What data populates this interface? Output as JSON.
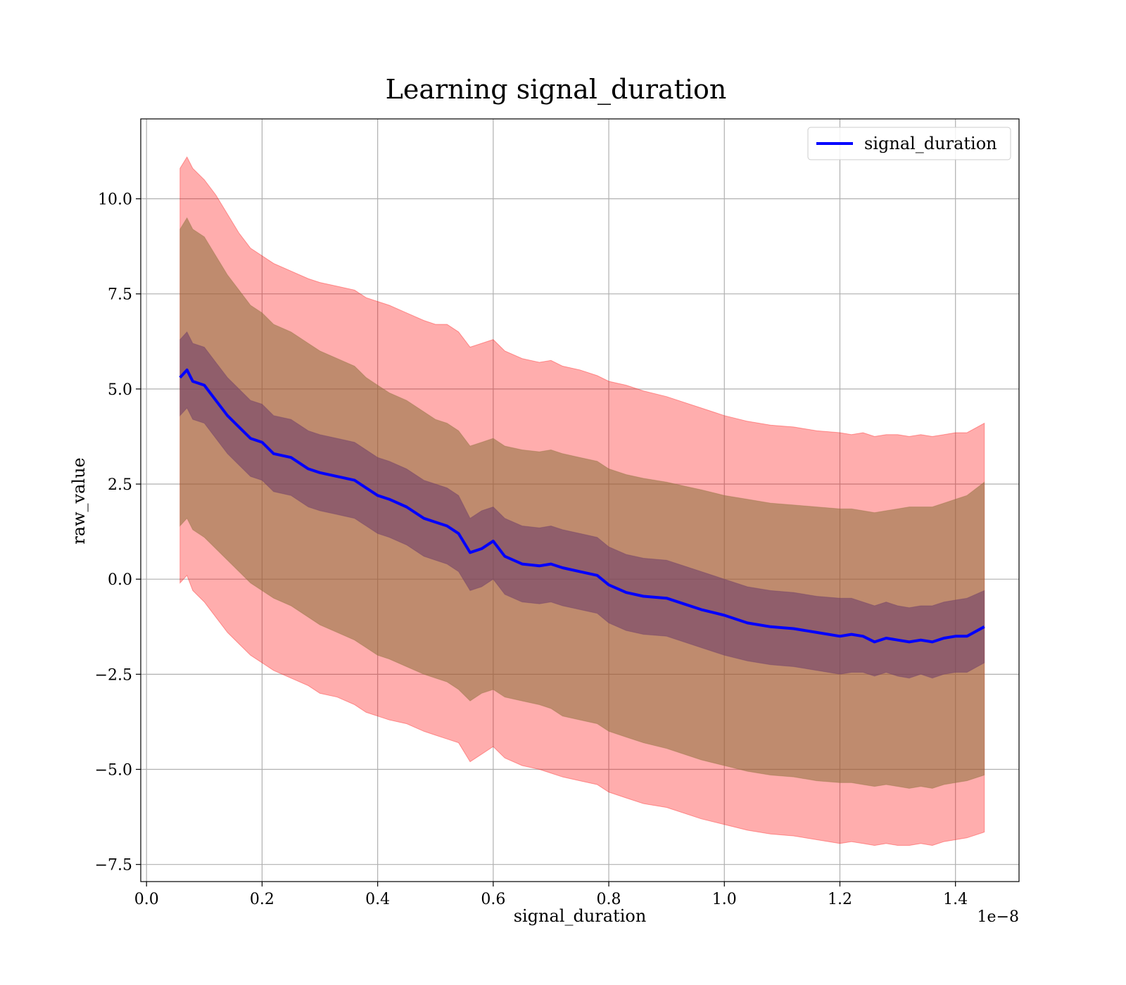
{
  "chart_data": {
    "type": "area",
    "title": "Learning signal_duration",
    "xlabel": "signal_duration",
    "ylabel": "raw_value",
    "x_offset_label": "1e−8",
    "xlim": [
      -0.01,
      1.51
    ],
    "ylim": [
      -7.95,
      12.1
    ],
    "x_ticks": [
      0.0,
      0.2,
      0.4,
      0.6,
      0.8,
      1.0,
      1.2,
      1.4
    ],
    "x_tick_labels": [
      "0.0",
      "0.2",
      "0.4",
      "0.6",
      "0.8",
      "1.0",
      "1.2",
      "1.4"
    ],
    "y_ticks": [
      -7.5,
      -5.0,
      -2.5,
      0.0,
      2.5,
      5.0,
      7.5,
      10.0
    ],
    "y_tick_labels": [
      "−7.5",
      "−5.0",
      "−2.5",
      "0.0",
      "2.5",
      "5.0",
      "7.5",
      "10.0"
    ],
    "grid": true,
    "legend_position": "top-right",
    "colors": {
      "line": "#0000ff",
      "band_outer": "#ff0000",
      "band_middle": "#8b6f3a",
      "band_inner": "#6a3a6a",
      "grid": "#b0b0b0"
    },
    "series": [
      {
        "name": "signal_duration",
        "x": [
          0.058,
          0.07,
          0.08,
          0.1,
          0.12,
          0.14,
          0.16,
          0.18,
          0.2,
          0.22,
          0.25,
          0.28,
          0.3,
          0.33,
          0.36,
          0.38,
          0.4,
          0.42,
          0.45,
          0.48,
          0.5,
          0.52,
          0.54,
          0.56,
          0.58,
          0.6,
          0.62,
          0.65,
          0.68,
          0.7,
          0.72,
          0.75,
          0.78,
          0.8,
          0.83,
          0.86,
          0.9,
          0.93,
          0.96,
          1.0,
          1.04,
          1.08,
          1.12,
          1.16,
          1.2,
          1.22,
          1.24,
          1.26,
          1.28,
          1.3,
          1.32,
          1.34,
          1.36,
          1.38,
          1.4,
          1.42,
          1.45
        ],
        "y": [
          5.3,
          5.5,
          5.2,
          5.1,
          4.7,
          4.3,
          4.0,
          3.7,
          3.6,
          3.3,
          3.2,
          2.9,
          2.8,
          2.7,
          2.6,
          2.4,
          2.2,
          2.1,
          1.9,
          1.6,
          1.5,
          1.4,
          1.2,
          0.7,
          0.8,
          1.0,
          0.6,
          0.4,
          0.35,
          0.4,
          0.3,
          0.2,
          0.1,
          -0.15,
          -0.35,
          -0.45,
          -0.5,
          -0.65,
          -0.8,
          -0.95,
          -1.15,
          -1.25,
          -1.3,
          -1.4,
          -1.5,
          -1.45,
          -1.5,
          -1.65,
          -1.55,
          -1.6,
          -1.65,
          -1.6,
          -1.65,
          -1.55,
          -1.5,
          -1.5,
          -1.25
        ],
        "upper_1": [
          6.3,
          6.5,
          6.2,
          6.1,
          5.7,
          5.3,
          5.0,
          4.7,
          4.6,
          4.3,
          4.2,
          3.9,
          3.8,
          3.7,
          3.6,
          3.4,
          3.2,
          3.1,
          2.9,
          2.6,
          2.5,
          2.4,
          2.2,
          1.6,
          1.8,
          1.9,
          1.6,
          1.4,
          1.35,
          1.4,
          1.3,
          1.2,
          1.1,
          0.85,
          0.65,
          0.55,
          0.5,
          0.35,
          0.2,
          0.0,
          -0.2,
          -0.3,
          -0.35,
          -0.45,
          -0.5,
          -0.5,
          -0.6,
          -0.7,
          -0.6,
          -0.7,
          -0.75,
          -0.7,
          -0.7,
          -0.6,
          -0.55,
          -0.5,
          -0.3
        ],
        "lower_1": [
          4.3,
          4.5,
          4.2,
          4.1,
          3.7,
          3.3,
          3.0,
          2.7,
          2.6,
          2.3,
          2.2,
          1.9,
          1.8,
          1.7,
          1.6,
          1.4,
          1.2,
          1.1,
          0.9,
          0.6,
          0.5,
          0.4,
          0.2,
          -0.3,
          -0.2,
          0.0,
          -0.4,
          -0.6,
          -0.65,
          -0.6,
          -0.7,
          -0.8,
          -0.9,
          -1.15,
          -1.35,
          -1.45,
          -1.5,
          -1.65,
          -1.8,
          -2.0,
          -2.15,
          -2.25,
          -2.3,
          -2.4,
          -2.5,
          -2.45,
          -2.45,
          -2.55,
          -2.45,
          -2.55,
          -2.6,
          -2.5,
          -2.6,
          -2.5,
          -2.45,
          -2.45,
          -2.2
        ],
        "upper_2": [
          9.2,
          9.5,
          9.2,
          9.0,
          8.5,
          8.0,
          7.6,
          7.2,
          7.0,
          6.7,
          6.5,
          6.2,
          6.0,
          5.8,
          5.6,
          5.3,
          5.1,
          4.9,
          4.7,
          4.4,
          4.2,
          4.1,
          3.9,
          3.5,
          3.6,
          3.7,
          3.5,
          3.4,
          3.35,
          3.4,
          3.3,
          3.2,
          3.1,
          2.9,
          2.75,
          2.65,
          2.55,
          2.45,
          2.35,
          2.2,
          2.1,
          2.0,
          1.95,
          1.9,
          1.85,
          1.85,
          1.8,
          1.75,
          1.8,
          1.85,
          1.9,
          1.9,
          1.9,
          2.0,
          2.1,
          2.2,
          2.55
        ],
        "lower_2": [
          1.4,
          1.6,
          1.3,
          1.1,
          0.8,
          0.5,
          0.2,
          -0.1,
          -0.3,
          -0.5,
          -0.7,
          -1.0,
          -1.2,
          -1.4,
          -1.6,
          -1.8,
          -2.0,
          -2.1,
          -2.3,
          -2.5,
          -2.6,
          -2.7,
          -2.9,
          -3.2,
          -3.0,
          -2.9,
          -3.1,
          -3.2,
          -3.3,
          -3.4,
          -3.6,
          -3.7,
          -3.8,
          -4.0,
          -4.15,
          -4.3,
          -4.45,
          -4.6,
          -4.75,
          -4.9,
          -5.05,
          -5.15,
          -5.2,
          -5.3,
          -5.35,
          -5.35,
          -5.4,
          -5.45,
          -5.4,
          -5.45,
          -5.5,
          -5.45,
          -5.5,
          -5.4,
          -5.35,
          -5.3,
          -5.15
        ],
        "upper_3": [
          10.8,
          11.1,
          10.8,
          10.5,
          10.1,
          9.6,
          9.1,
          8.7,
          8.5,
          8.3,
          8.1,
          7.9,
          7.8,
          7.7,
          7.6,
          7.4,
          7.3,
          7.2,
          7.0,
          6.8,
          6.7,
          6.7,
          6.5,
          6.1,
          6.2,
          6.3,
          6.0,
          5.8,
          5.7,
          5.75,
          5.6,
          5.5,
          5.35,
          5.2,
          5.1,
          4.95,
          4.8,
          4.65,
          4.5,
          4.3,
          4.15,
          4.05,
          4.0,
          3.9,
          3.85,
          3.8,
          3.85,
          3.75,
          3.8,
          3.8,
          3.75,
          3.8,
          3.75,
          3.8,
          3.85,
          3.85,
          4.1
        ],
        "lower_3": [
          -0.1,
          0.1,
          -0.3,
          -0.6,
          -1.0,
          -1.4,
          -1.7,
          -2.0,
          -2.2,
          -2.4,
          -2.6,
          -2.8,
          -3.0,
          -3.1,
          -3.3,
          -3.5,
          -3.6,
          -3.7,
          -3.8,
          -4.0,
          -4.1,
          -4.2,
          -4.3,
          -4.8,
          -4.6,
          -4.4,
          -4.7,
          -4.9,
          -5.0,
          -5.1,
          -5.2,
          -5.3,
          -5.4,
          -5.6,
          -5.75,
          -5.9,
          -6.0,
          -6.15,
          -6.3,
          -6.45,
          -6.6,
          -6.7,
          -6.75,
          -6.85,
          -6.95,
          -6.9,
          -6.95,
          -7.0,
          -6.95,
          -7.0,
          -7.0,
          -6.95,
          -7.0,
          -6.9,
          -6.85,
          -6.8,
          -6.65
        ]
      }
    ]
  }
}
